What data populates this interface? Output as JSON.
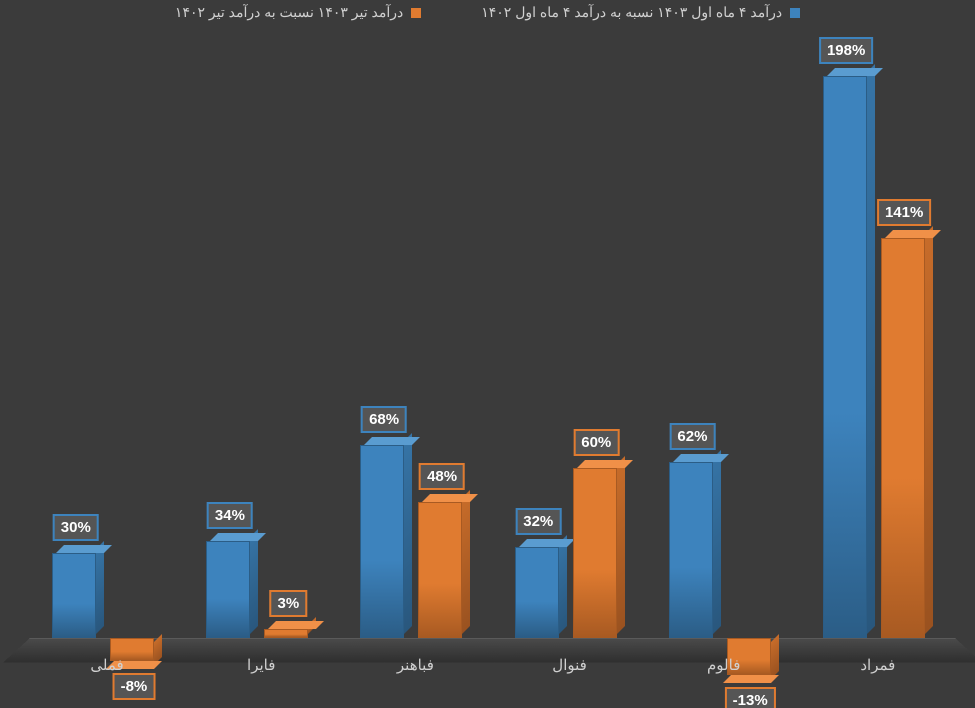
{
  "chart": {
    "type": "bar-3d-grouped",
    "background_color": "#3b3b3b",
    "max_value": 200,
    "unit_suffix": "%",
    "legend_text_color": "#d0d0d0",
    "axis_label_color": "#d0d0d0",
    "axis_label_fontsize": 15,
    "data_label_fontsize": 15,
    "data_label_bg": "rgba(90,90,90,0.85)",
    "data_label_color": "#ffffff",
    "series": [
      {
        "id": "s1",
        "label": "درآمد ۴ ماه اول ۱۴۰۳ نسبه به درآمد ۴ ماه اول ۱۴۰۲",
        "color": "#3d83bd",
        "side_color": "#29577d",
        "top_color": "#5a9cd0"
      },
      {
        "id": "s2",
        "label": "درآمد تیر ۱۴۰۳ نسبت به درآمد تیر ۱۴۰۲",
        "color": "#e07b30",
        "side_color": "#9a5220",
        "top_color": "#f09048"
      }
    ],
    "categories": [
      {
        "label": "فملی",
        "values": [
          30,
          -8
        ]
      },
      {
        "label": "فایرا",
        "values": [
          34,
          3
        ]
      },
      {
        "label": "فباهنر",
        "values": [
          68,
          48
        ]
      },
      {
        "label": "فنوال",
        "values": [
          32,
          60
        ]
      },
      {
        "label": "فالوم",
        "values": [
          62,
          -13
        ]
      },
      {
        "label": "فمراد",
        "values": [
          198,
          141
        ]
      }
    ]
  }
}
